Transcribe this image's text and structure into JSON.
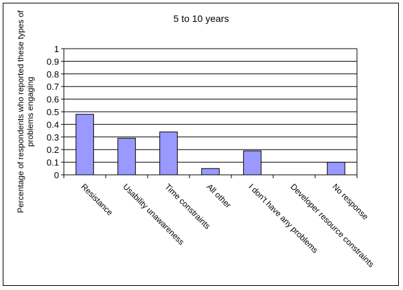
{
  "chart_data": {
    "type": "bar",
    "title": "5 to 10 years",
    "ylabel_lines": [
      "Percentage of respondents who reported these types of",
      "problems engaging"
    ],
    "xlabel": "",
    "categories": [
      "Resistance",
      "Usability unawareness",
      "Time constraints",
      "All other",
      "I don't have any problems",
      "Developer resource constraints",
      "No response"
    ],
    "values": [
      0.48,
      0.29,
      0.34,
      0.05,
      0.19,
      0,
      0.1
    ],
    "ylim": [
      0,
      1
    ],
    "yticks": [
      "0",
      "0.1",
      "0.2",
      "0.3",
      "0.4",
      "0.5",
      "0.6",
      "0.7",
      "0.8",
      "0.9",
      "1"
    ],
    "grid": true,
    "legend": "none",
    "colors": {
      "bar_fill": "#9999ff",
      "bar_stroke": "#000000",
      "plot_background": "#ffffff",
      "gridline": "#000000"
    }
  }
}
